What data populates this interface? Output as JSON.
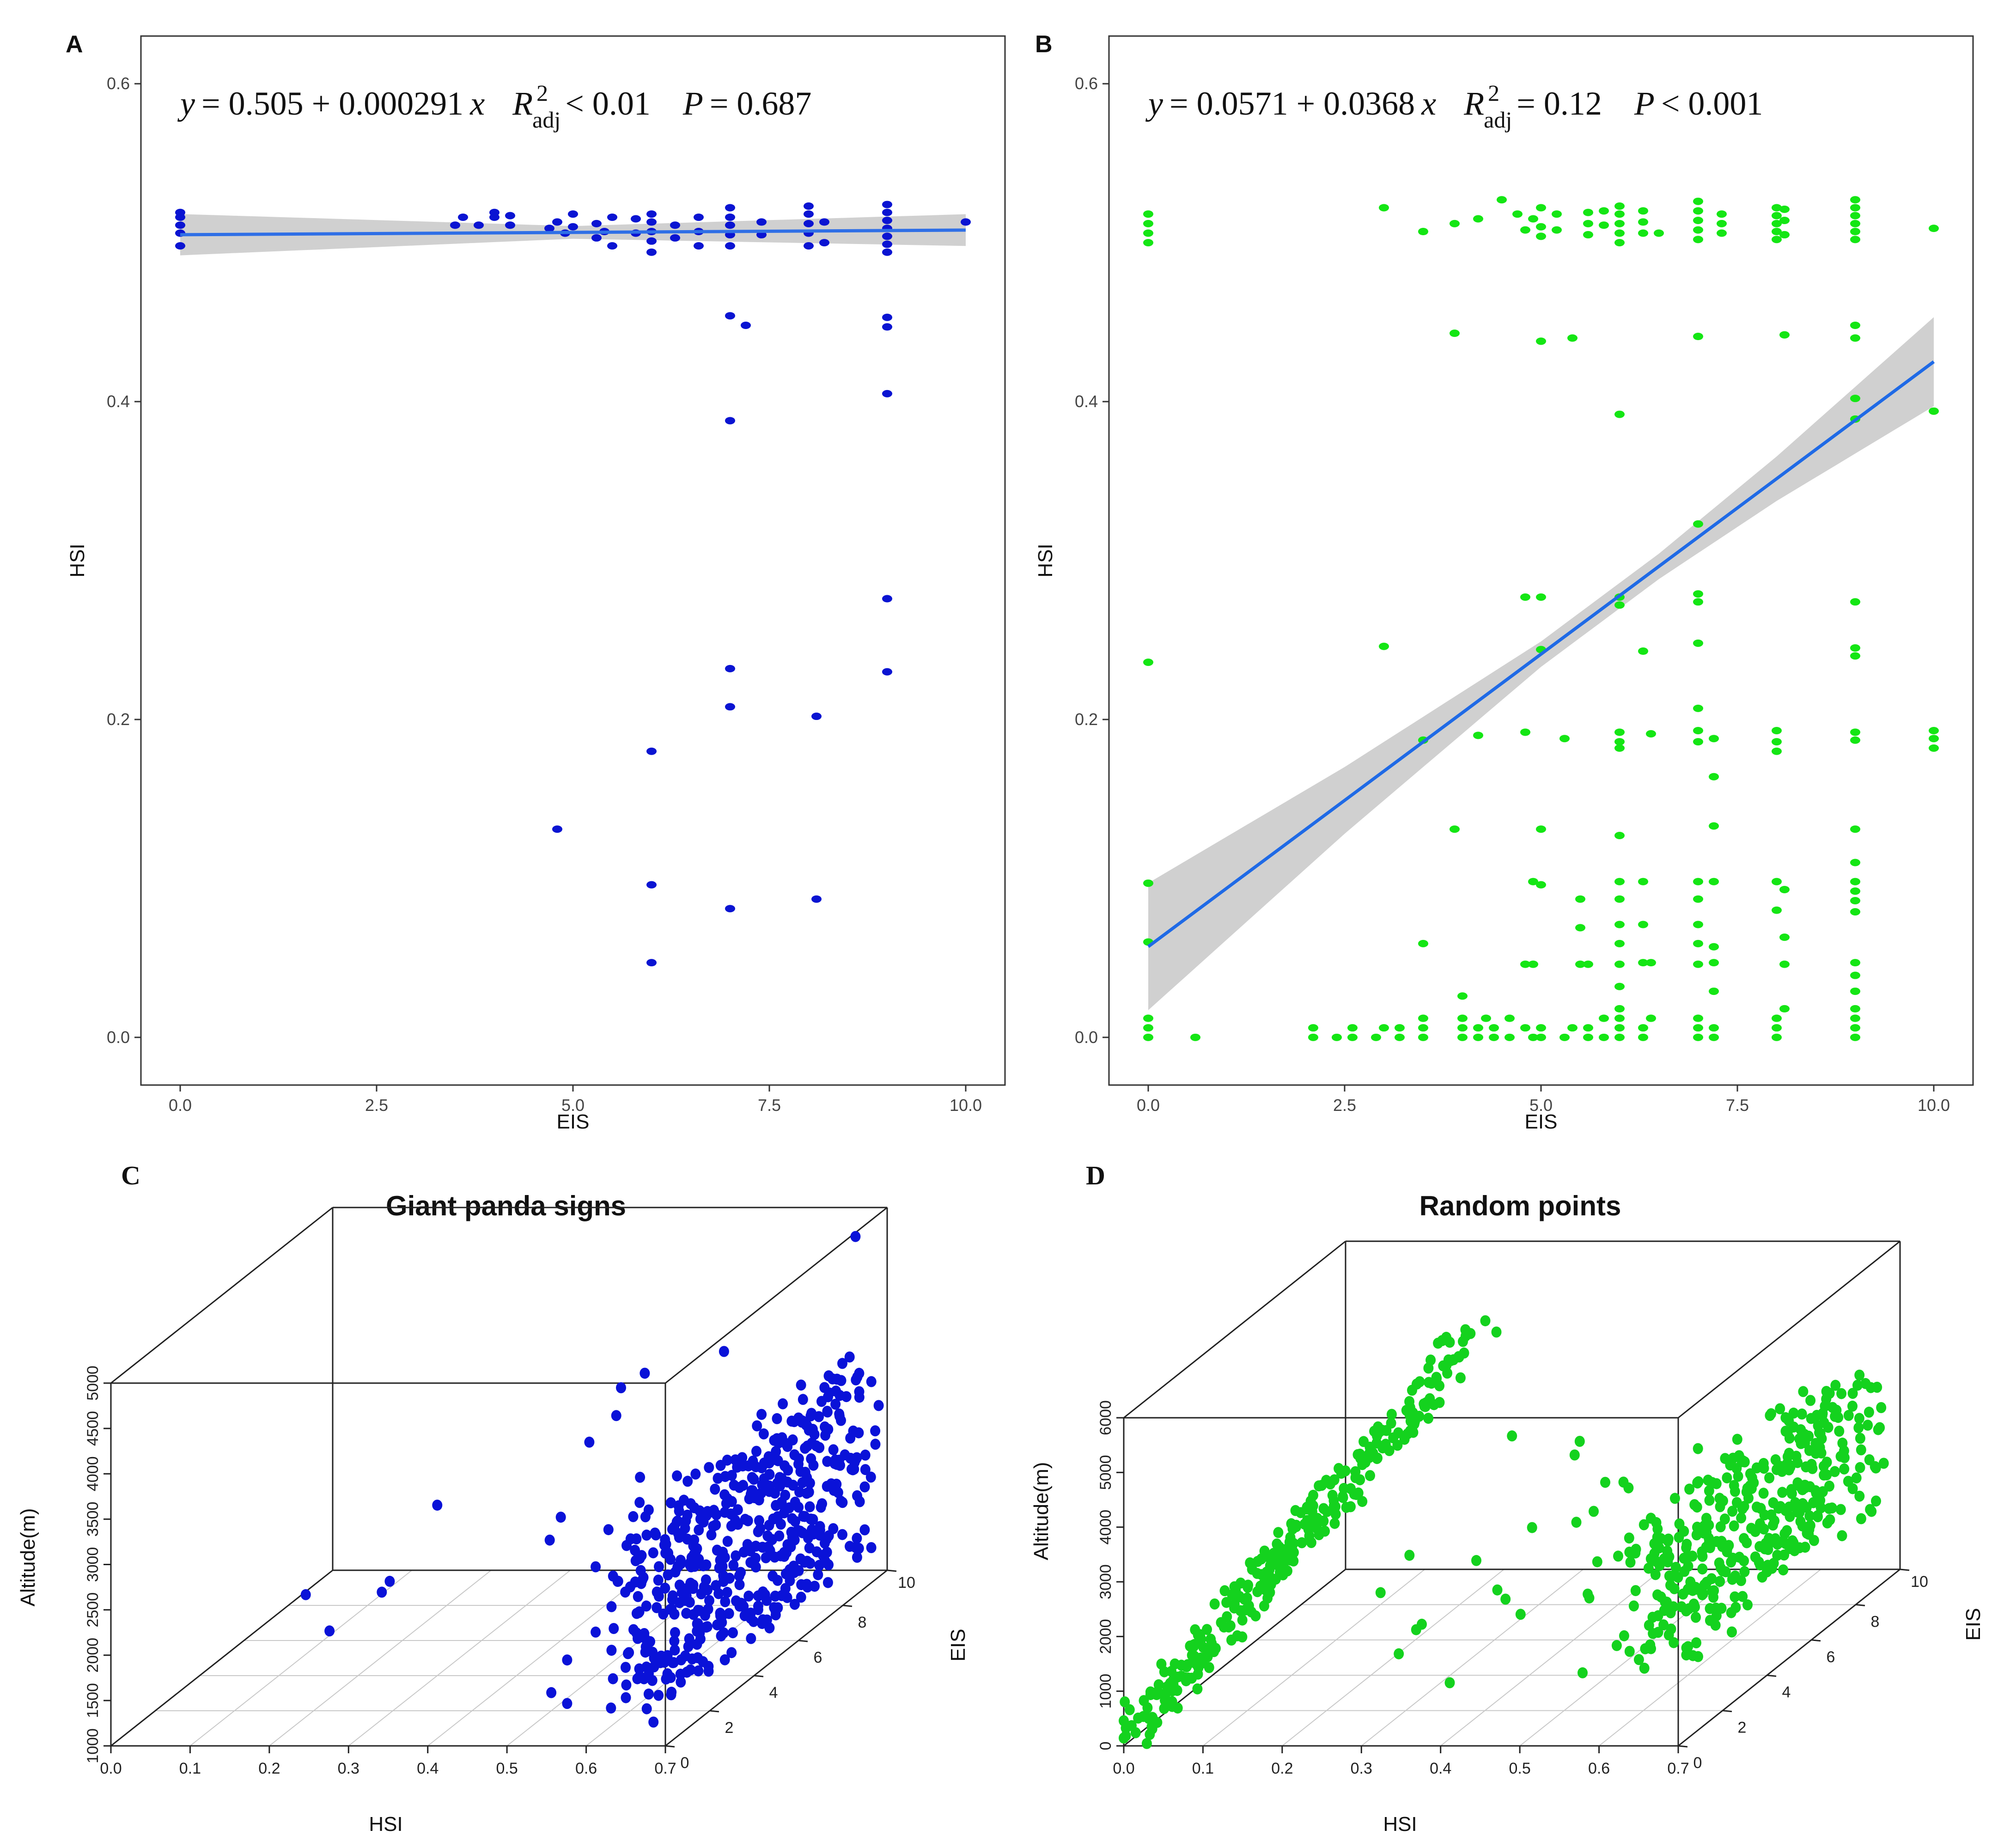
{
  "chart_data": [
    {
      "id": "A",
      "type": "scatter",
      "panel_label": "A",
      "xlabel": "EIS",
      "ylabel": "HSI",
      "xlim": [
        -0.5,
        10.5
      ],
      "ylim": [
        -0.03,
        0.63
      ],
      "xticks": [
        "0.0",
        "2.5",
        "5.0",
        "7.5",
        "10.0"
      ],
      "yticks": [
        "0.0",
        "0.2",
        "0.4",
        "0.6"
      ],
      "point_color": "#0a14d2",
      "fit_color": "#2f6fe6",
      "band_color": "#c8c8c8",
      "equation": {
        "lhs": "y",
        "rhs": "= 0.505 + 0.000291",
        "xvar": "x",
        "r_label": "R",
        "r_sup": "2",
        "r_sub": "adj",
        "r_value": "< 0.01",
        "p_label": "P",
        "p_value": "= 0.687"
      },
      "fit": {
        "intercept": 0.505,
        "slope": 0.000291,
        "band": [
          [
            0,
            0.013
          ],
          [
            5,
            0.004
          ],
          [
            10,
            0.01
          ]
        ]
      },
      "points": [
        [
          0,
          0.498
        ],
        [
          0,
          0.506
        ],
        [
          0,
          0.511
        ],
        [
          0,
          0.516
        ],
        [
          0,
          0.519
        ],
        [
          3.5,
          0.511
        ],
        [
          3.6,
          0.516
        ],
        [
          3.8,
          0.511
        ],
        [
          4.0,
          0.516
        ],
        [
          4.0,
          0.519
        ],
        [
          4.2,
          0.511
        ],
        [
          4.2,
          0.517
        ],
        [
          4.7,
          0.509
        ],
        [
          4.8,
          0.513
        ],
        [
          4.9,
          0.506
        ],
        [
          5.0,
          0.518
        ],
        [
          5.0,
          0.51
        ],
        [
          5.3,
          0.503
        ],
        [
          5.3,
          0.512
        ],
        [
          5.4,
          0.507
        ],
        [
          5.5,
          0.516
        ],
        [
          5.5,
          0.498
        ],
        [
          5.8,
          0.515
        ],
        [
          5.8,
          0.506
        ],
        [
          6.0,
          0.494
        ],
        [
          6.0,
          0.501
        ],
        [
          6.0,
          0.507
        ],
        [
          6.0,
          0.513
        ],
        [
          6.0,
          0.518
        ],
        [
          6.3,
          0.511
        ],
        [
          6.3,
          0.503
        ],
        [
          6.6,
          0.498
        ],
        [
          6.6,
          0.507
        ],
        [
          6.6,
          0.516
        ],
        [
          7.0,
          0.498
        ],
        [
          7.0,
          0.505
        ],
        [
          7.0,
          0.511
        ],
        [
          7.0,
          0.516
        ],
        [
          7.0,
          0.522
        ],
        [
          7.4,
          0.513
        ],
        [
          7.4,
          0.505
        ],
        [
          8.0,
          0.498
        ],
        [
          8.0,
          0.506
        ],
        [
          8.0,
          0.512
        ],
        [
          8.0,
          0.518
        ],
        [
          8.0,
          0.523
        ],
        [
          8.2,
          0.513
        ],
        [
          8.2,
          0.5
        ],
        [
          9.0,
          0.494
        ],
        [
          9.0,
          0.499
        ],
        [
          9.0,
          0.504
        ],
        [
          9.0,
          0.509
        ],
        [
          9.0,
          0.514
        ],
        [
          9.0,
          0.519
        ],
        [
          9.0,
          0.524
        ],
        [
          10.0,
          0.513
        ],
        [
          7.0,
          0.454
        ],
        [
          7.2,
          0.448
        ],
        [
          9.0,
          0.453
        ],
        [
          9.0,
          0.447
        ],
        [
          7.0,
          0.388
        ],
        [
          9.0,
          0.405
        ],
        [
          9.0,
          0.276
        ],
        [
          7.0,
          0.232
        ],
        [
          9.0,
          0.23
        ],
        [
          7.0,
          0.208
        ],
        [
          8.1,
          0.202
        ],
        [
          6.0,
          0.18
        ],
        [
          4.8,
          0.131
        ],
        [
          6.0,
          0.096
        ],
        [
          8.1,
          0.087
        ],
        [
          7.0,
          0.081
        ],
        [
          6.0,
          0.047
        ]
      ]
    },
    {
      "id": "B",
      "type": "scatter",
      "panel_label": "B",
      "xlabel": "EIS",
      "ylabel": "HSI",
      "xlim": [
        -0.5,
        10.5
      ],
      "ylim": [
        -0.03,
        0.63
      ],
      "xticks": [
        "0.0",
        "2.5",
        "5.0",
        "7.5",
        "10.0"
      ],
      "yticks": [
        "0.0",
        "0.2",
        "0.4",
        "0.6"
      ],
      "point_color": "#14e614",
      "fit_color": "#1f6ae6",
      "band_color": "#c8c8c8",
      "equation": {
        "lhs": "y",
        "rhs": "= 0.0571 + 0.0368",
        "xvar": "x",
        "r_label": "R",
        "r_sup": "2",
        "r_sub": "adj",
        "r_value": "= 0.12",
        "p_label": "P",
        "p_value": "< 0.001"
      },
      "fit": {
        "intercept": 0.0571,
        "slope": 0.0368,
        "band": [
          [
            0,
            0.04
          ],
          [
            2.5,
            0.021
          ],
          [
            5,
            0.008
          ],
          [
            6.5,
            0.008
          ],
          [
            8,
            0.014
          ],
          [
            10,
            0.028
          ]
        ]
      },
      "points": [
        [
          0,
          0.5
        ],
        [
          0,
          0.506
        ],
        [
          0,
          0.512
        ],
        [
          0,
          0.518
        ],
        [
          3.0,
          0.522
        ],
        [
          3.5,
          0.507
        ],
        [
          3.9,
          0.512
        ],
        [
          4.2,
          0.515
        ],
        [
          4.5,
          0.527
        ],
        [
          4.7,
          0.518
        ],
        [
          4.8,
          0.508
        ],
        [
          4.9,
          0.515
        ],
        [
          5.0,
          0.522
        ],
        [
          5.0,
          0.51
        ],
        [
          5.0,
          0.504
        ],
        [
          5.2,
          0.508
        ],
        [
          5.2,
          0.518
        ],
        [
          5.6,
          0.505
        ],
        [
          5.6,
          0.512
        ],
        [
          5.6,
          0.519
        ],
        [
          5.8,
          0.511
        ],
        [
          5.8,
          0.52
        ],
        [
          6.0,
          0.5
        ],
        [
          6.0,
          0.506
        ],
        [
          6.0,
          0.512
        ],
        [
          6.0,
          0.518
        ],
        [
          6.0,
          0.523
        ],
        [
          6.3,
          0.506
        ],
        [
          6.3,
          0.513
        ],
        [
          6.3,
          0.52
        ],
        [
          6.5,
          0.506
        ],
        [
          7.0,
          0.502
        ],
        [
          7.0,
          0.508
        ],
        [
          7.0,
          0.514
        ],
        [
          7.0,
          0.52
        ],
        [
          7.0,
          0.526
        ],
        [
          7.3,
          0.506
        ],
        [
          7.3,
          0.512
        ],
        [
          7.3,
          0.518
        ],
        [
          8.0,
          0.502
        ],
        [
          8.0,
          0.507
        ],
        [
          8.0,
          0.512
        ],
        [
          8.0,
          0.517
        ],
        [
          8.0,
          0.522
        ],
        [
          8.1,
          0.505
        ],
        [
          8.1,
          0.514
        ],
        [
          8.1,
          0.521
        ],
        [
          9.0,
          0.502
        ],
        [
          9.0,
          0.507
        ],
        [
          9.0,
          0.512
        ],
        [
          9.0,
          0.517
        ],
        [
          9.0,
          0.522
        ],
        [
          9.0,
          0.527
        ],
        [
          10.0,
          0.509
        ],
        [
          3.9,
          0.443
        ],
        [
          5.0,
          0.438
        ],
        [
          5.4,
          0.44
        ],
        [
          7.0,
          0.441
        ],
        [
          8.1,
          0.442
        ],
        [
          9.0,
          0.448
        ],
        [
          9.0,
          0.44
        ],
        [
          6.0,
          0.392
        ],
        [
          9.0,
          0.402
        ],
        [
          9.0,
          0.389
        ],
        [
          10.0,
          0.394
        ],
        [
          7.0,
          0.323
        ],
        [
          4.8,
          0.277
        ],
        [
          5.0,
          0.277
        ],
        [
          6.0,
          0.277
        ],
        [
          6.0,
          0.272
        ],
        [
          7.0,
          0.279
        ],
        [
          7.0,
          0.274
        ],
        [
          9.0,
          0.274
        ],
        [
          0,
          0.236
        ],
        [
          3.0,
          0.246
        ],
        [
          5.0,
          0.244
        ],
        [
          6.3,
          0.243
        ],
        [
          7.0,
          0.248
        ],
        [
          9.0,
          0.245
        ],
        [
          9.0,
          0.24
        ],
        [
          3.5,
          0.187
        ],
        [
          4.2,
          0.19
        ],
        [
          4.8,
          0.192
        ],
        [
          5.3,
          0.188
        ],
        [
          6.0,
          0.186
        ],
        [
          6.0,
          0.192
        ],
        [
          6.0,
          0.182
        ],
        [
          6.4,
          0.191
        ],
        [
          7.0,
          0.193
        ],
        [
          7.0,
          0.186
        ],
        [
          7.0,
          0.207
        ],
        [
          7.2,
          0.188
        ],
        [
          7.2,
          0.164
        ],
        [
          8.0,
          0.18
        ],
        [
          8.0,
          0.186
        ],
        [
          8.0,
          0.193
        ],
        [
          9.0,
          0.187
        ],
        [
          9.0,
          0.192
        ],
        [
          10.0,
          0.182
        ],
        [
          10.0,
          0.188
        ],
        [
          10.0,
          0.193
        ],
        [
          3.9,
          0.131
        ],
        [
          5.0,
          0.131
        ],
        [
          6.0,
          0.127
        ],
        [
          7.2,
          0.133
        ],
        [
          9.0,
          0.131
        ],
        [
          0,
          0.097
        ],
        [
          4.9,
          0.098
        ],
        [
          5.0,
          0.096
        ],
        [
          5.5,
          0.087
        ],
        [
          5.5,
          0.069
        ],
        [
          6.0,
          0.098
        ],
        [
          6.0,
          0.087
        ],
        [
          6.0,
          0.071
        ],
        [
          6.3,
          0.098
        ],
        [
          6.3,
          0.071
        ],
        [
          7.0,
          0.098
        ],
        [
          7.0,
          0.087
        ],
        [
          7.0,
          0.071
        ],
        [
          7.2,
          0.098
        ],
        [
          8.0,
          0.098
        ],
        [
          8.1,
          0.093
        ],
        [
          8.0,
          0.08
        ],
        [
          8.1,
          0.063
        ],
        [
          9.0,
          0.11
        ],
        [
          9.0,
          0.098
        ],
        [
          9.0,
          0.092
        ],
        [
          9.0,
          0.086
        ],
        [
          9.0,
          0.079
        ],
        [
          0,
          0.06
        ],
        [
          3.5,
          0.059
        ],
        [
          6.0,
          0.059
        ],
        [
          7.0,
          0.059
        ],
        [
          7.2,
          0.057
        ],
        [
          4.8,
          0.046
        ],
        [
          4.9,
          0.046
        ],
        [
          5.5,
          0.046
        ],
        [
          5.6,
          0.046
        ],
        [
          6.0,
          0.046
        ],
        [
          6.3,
          0.047
        ],
        [
          6.4,
          0.047
        ],
        [
          7.0,
          0.046
        ],
        [
          7.2,
          0.047
        ],
        [
          8.1,
          0.046
        ],
        [
          9.0,
          0.047
        ],
        [
          4.0,
          0.026
        ],
        [
          6.0,
          0.032
        ],
        [
          7.2,
          0.029
        ],
        [
          9.0,
          0.039
        ],
        [
          9.0,
          0.029
        ],
        [
          0,
          0.0
        ],
        [
          0,
          0.006
        ],
        [
          0,
          0.012
        ],
        [
          0.6,
          0.0
        ],
        [
          2.1,
          0.0
        ],
        [
          2.1,
          0.006
        ],
        [
          2.4,
          0.0
        ],
        [
          2.6,
          0.0
        ],
        [
          2.6,
          0.006
        ],
        [
          2.9,
          0.0
        ],
        [
          3.0,
          0.006
        ],
        [
          3.2,
          0.0
        ],
        [
          3.2,
          0.006
        ],
        [
          3.5,
          0.0
        ],
        [
          3.5,
          0.006
        ],
        [
          3.5,
          0.012
        ],
        [
          4.0,
          0.0
        ],
        [
          4.0,
          0.006
        ],
        [
          4.0,
          0.012
        ],
        [
          4.2,
          0.0
        ],
        [
          4.2,
          0.006
        ],
        [
          4.3,
          0.012
        ],
        [
          4.4,
          0.0
        ],
        [
          4.4,
          0.006
        ],
        [
          4.6,
          0.012
        ],
        [
          4.6,
          0.0
        ],
        [
          4.8,
          0.006
        ],
        [
          4.9,
          0.0
        ],
        [
          5.0,
          0.006
        ],
        [
          5.0,
          0.0
        ],
        [
          5.3,
          0.0
        ],
        [
          5.4,
          0.006
        ],
        [
          5.6,
          0.0
        ],
        [
          5.6,
          0.006
        ],
        [
          5.8,
          0.0
        ],
        [
          5.8,
          0.012
        ],
        [
          6.0,
          0.0
        ],
        [
          6.0,
          0.006
        ],
        [
          6.0,
          0.012
        ],
        [
          6.0,
          0.018
        ],
        [
          6.3,
          0.0
        ],
        [
          6.3,
          0.006
        ],
        [
          6.4,
          0.012
        ],
        [
          7.0,
          0.0
        ],
        [
          7.0,
          0.006
        ],
        [
          7.0,
          0.012
        ],
        [
          7.2,
          0.0
        ],
        [
          7.2,
          0.006
        ],
        [
          8.0,
          0.0
        ],
        [
          8.0,
          0.006
        ],
        [
          8.0,
          0.012
        ],
        [
          8.1,
          0.018
        ],
        [
          9.0,
          0.0
        ],
        [
          9.0,
          0.006
        ],
        [
          9.0,
          0.012
        ],
        [
          9.0,
          0.018
        ]
      ]
    },
    {
      "id": "C",
      "type": "scatter3d",
      "panel_label": "C",
      "title": "Giant panda signs",
      "xlabel": "HSI",
      "ylabel": "EIS",
      "zlabel": "Altitude(m)",
      "xticks": [
        "0.0",
        "0.1",
        "0.2",
        "0.3",
        "0.4",
        "0.5",
        "0.6",
        "0.7"
      ],
      "yticks": [
        "0",
        "2",
        "4",
        "6",
        "8",
        "10"
      ],
      "zticks": [
        "1000",
        "1500",
        "2000",
        "2500",
        "3000",
        "3500",
        "4000",
        "4500",
        "5000"
      ],
      "point_color": "#0a12d8"
    },
    {
      "id": "D",
      "type": "scatter3d",
      "panel_label": "D",
      "title": "Random points",
      "xlabel": "HSI",
      "ylabel": "EIS",
      "zlabel": "Altitude(m)",
      "xticks": [
        "0.0",
        "0.1",
        "0.2",
        "0.3",
        "0.4",
        "0.5",
        "0.6",
        "0.7"
      ],
      "yticks": [
        "0",
        "2",
        "4",
        "6",
        "8",
        "10"
      ],
      "zticks": [
        "0",
        "1000",
        "2000",
        "3000",
        "4000",
        "5000",
        "6000"
      ],
      "point_color": "#14d21e"
    }
  ]
}
